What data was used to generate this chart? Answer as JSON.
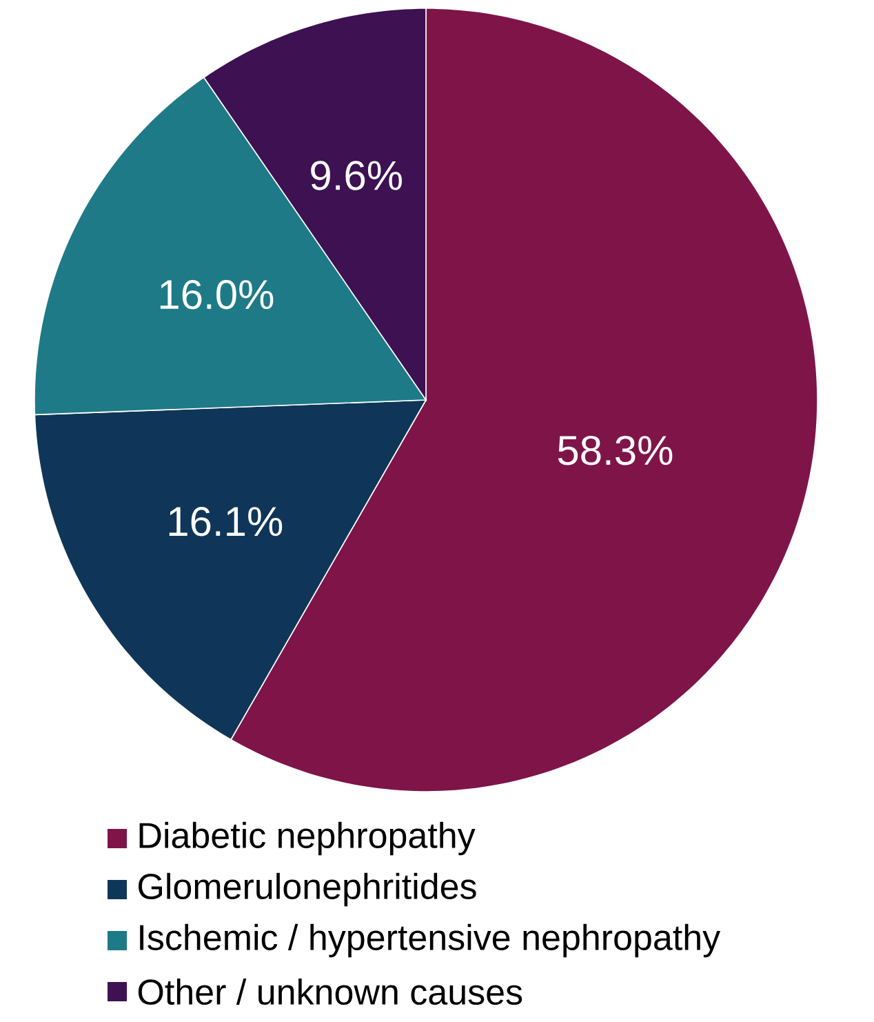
{
  "chart_data": {
    "type": "pie",
    "categories": [
      "Diabetic nephropathy",
      "Glomerulonephritides",
      "Ischemic / hypertensive nephropathy",
      "Other / unknown causes"
    ],
    "values": [
      58.3,
      16.1,
      16.0,
      9.6
    ],
    "colors": [
      "#7f1449",
      "#0f3658",
      "#1f7a87",
      "#3d1152"
    ],
    "value_labels": [
      "58.3%",
      "16.1%",
      "16.0%",
      "9.6%"
    ],
    "legend": "bottom"
  }
}
